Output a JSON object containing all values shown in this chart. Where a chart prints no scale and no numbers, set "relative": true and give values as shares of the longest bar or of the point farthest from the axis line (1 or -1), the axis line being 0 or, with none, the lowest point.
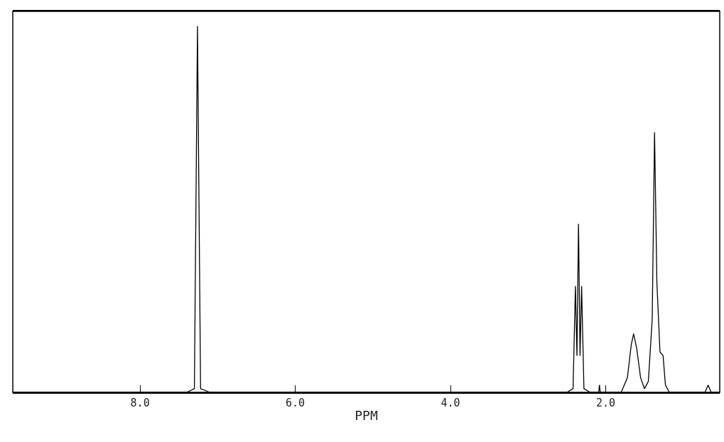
{
  "chart_data": {
    "type": "line",
    "xlabel": "PPM",
    "relative": true,
    "xlim": [
      9.64,
      0.53
    ],
    "xticks": [
      {
        "value": 8,
        "label": "8.0"
      },
      {
        "value": 6,
        "label": "6.0"
      },
      {
        "value": 4,
        "label": "4.0"
      },
      {
        "value": 2,
        "label": "2.0"
      }
    ],
    "x": [
      9.64,
      7.4,
      7.3,
      7.26,
      7.22,
      7.1,
      2.5,
      2.42,
      2.39,
      2.37,
      2.35,
      2.33,
      2.31,
      2.28,
      2.2,
      2.09,
      2.08,
      2.07,
      1.8,
      1.72,
      1.67,
      1.64,
      1.6,
      1.55,
      1.5,
      1.45,
      1.4,
      1.37,
      1.34,
      1.3,
      1.26,
      1.23,
      1.18,
      0.72,
      0.68,
      0.64,
      0.53
    ],
    "series": [
      {
        "color": "#000000",
        "values": [
          0,
          0,
          0.01,
          1.0,
          0.01,
          0,
          0,
          0.01,
          0.29,
          0.1,
          0.46,
          0.1,
          0.29,
          0.01,
          0,
          0,
          0.02,
          0,
          0,
          0.04,
          0.13,
          0.16,
          0.12,
          0.04,
          0.01,
          0.03,
          0.2,
          0.71,
          0.3,
          0.11,
          0.1,
          0.02,
          0,
          0,
          0.02,
          0,
          0
        ]
      }
    ]
  }
}
